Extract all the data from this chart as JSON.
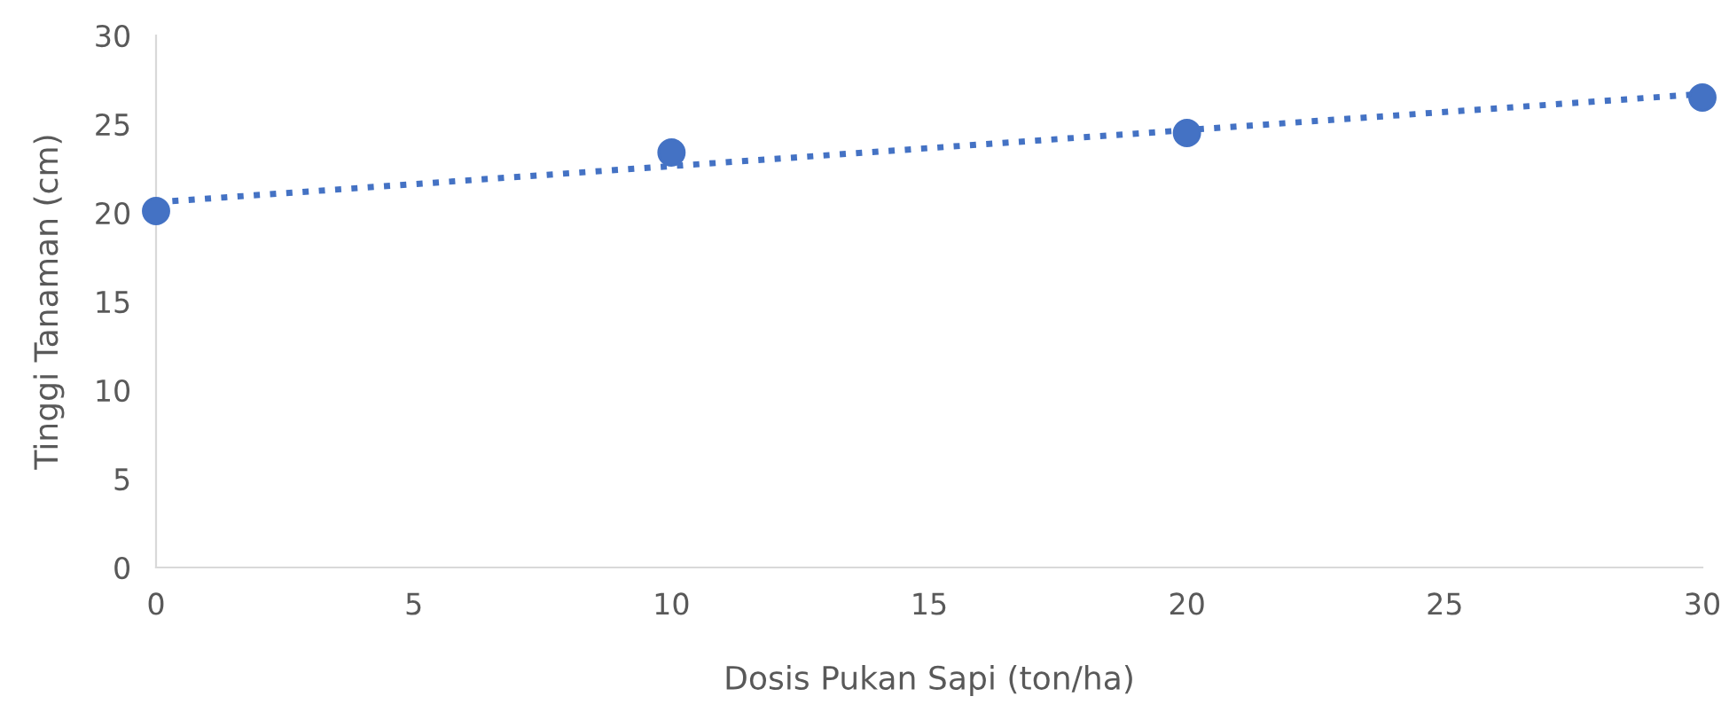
{
  "chart_data": {
    "type": "scatter",
    "xlabel": "Dosis Pukan Sapi (ton/ha)",
    "ylabel": "Tinggi Tanaman (cm)",
    "x": [
      0,
      10,
      20,
      30
    ],
    "series": [
      {
        "color": "#4472c4",
        "values": [
          20.1,
          23.4,
          24.5,
          26.5
        ],
        "marker": "circle"
      },
      {
        "type": "line",
        "color": "#4472c4",
        "x": [
          0,
          30
        ],
        "values": [
          20.6,
          26.7
        ],
        "line_style": "dotted",
        "marker": "none"
      }
    ],
    "xlim": [
      0,
      30
    ],
    "ylim": [
      0,
      30
    ],
    "xticks": [
      0,
      5,
      10,
      15,
      20,
      25,
      30
    ],
    "yticks": [
      0,
      5,
      10,
      15,
      20,
      25,
      30
    ],
    "grid": false,
    "legend": false
  }
}
